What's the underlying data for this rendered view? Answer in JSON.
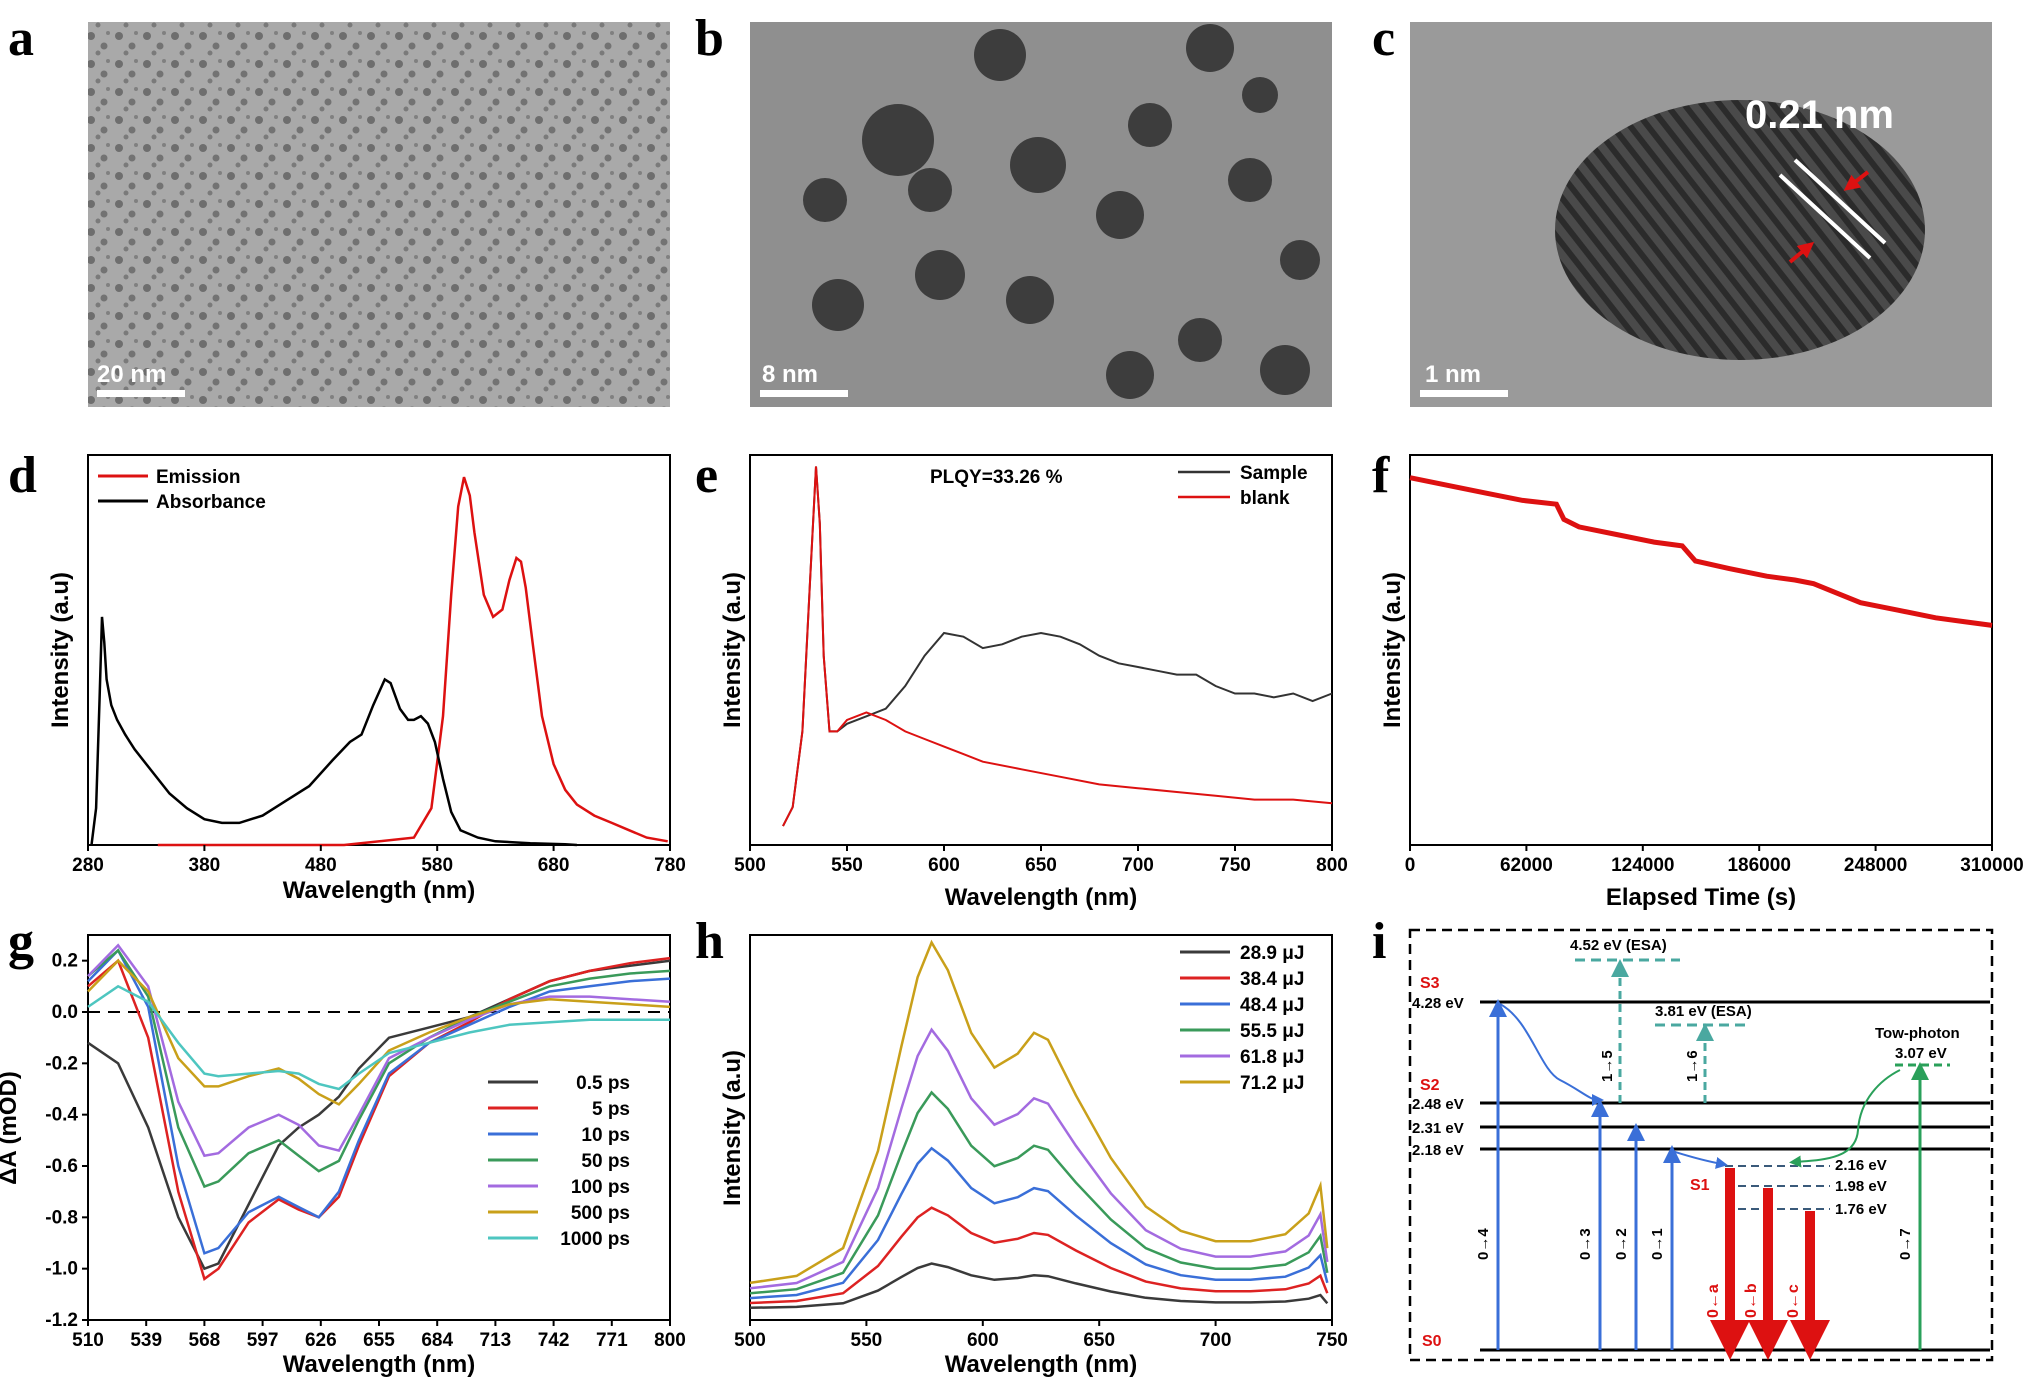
{
  "panels": {
    "a": {
      "label": "a",
      "scale_bar": "20 nm"
    },
    "b": {
      "label": "b",
      "scale_bar": "8 nm"
    },
    "c": {
      "label": "c",
      "scale_bar": "1 nm",
      "spacing": "0.21 nm"
    },
    "d": {
      "label": "d"
    },
    "e": {
      "label": "e",
      "annotation": "PLQY=33.26 %"
    },
    "f": {
      "label": "f"
    },
    "g": {
      "label": "g"
    },
    "h": {
      "label": "h"
    },
    "i": {
      "label": "i"
    }
  },
  "colors": {
    "red": "#dd1111",
    "black": "#222222",
    "blue": "#3a6fd8",
    "green": "#2aa05a",
    "teal": "#3aa6a0",
    "gold": "#c9a01a",
    "violet": "#a36be0",
    "dashteal": "#4aa8a0"
  },
  "chart_data": [
    {
      "type": "line",
      "panel": "d",
      "xlabel": "Wavelength (nm)",
      "ylabel": "Intensity (a.u)",
      "xlim": [
        280,
        780
      ],
      "xticks": [
        "280",
        "380",
        "480",
        "580",
        "680",
        "780"
      ],
      "series": [
        {
          "name": "Emission",
          "color": "#dd1111",
          "x": [
            340,
            500,
            560,
            575,
            585,
            592,
            598,
            603,
            608,
            612,
            620,
            628,
            636,
            642,
            648,
            652,
            656,
            662,
            670,
            680,
            690,
            700,
            715,
            730,
            745,
            760,
            778
          ],
          "y": [
            0.0,
            0.0,
            0.02,
            0.1,
            0.35,
            0.68,
            0.92,
            1.0,
            0.95,
            0.85,
            0.68,
            0.62,
            0.64,
            0.72,
            0.78,
            0.77,
            0.7,
            0.55,
            0.35,
            0.22,
            0.15,
            0.11,
            0.08,
            0.06,
            0.04,
            0.02,
            0.01
          ]
        },
        {
          "name": "Absorbance",
          "color": "#000000",
          "x": [
            283,
            287,
            290,
            292,
            294,
            296,
            300,
            305,
            312,
            320,
            335,
            350,
            365,
            380,
            395,
            410,
            430,
            450,
            470,
            490,
            505,
            515,
            525,
            535,
            540,
            548,
            555,
            560,
            566,
            572,
            578,
            585,
            592,
            600,
            615,
            630,
            660,
            690,
            700
          ],
          "y": [
            0.0,
            0.1,
            0.4,
            0.62,
            0.55,
            0.45,
            0.38,
            0.34,
            0.3,
            0.26,
            0.2,
            0.14,
            0.1,
            0.07,
            0.06,
            0.06,
            0.08,
            0.12,
            0.16,
            0.23,
            0.28,
            0.3,
            0.38,
            0.45,
            0.44,
            0.37,
            0.34,
            0.34,
            0.35,
            0.33,
            0.28,
            0.18,
            0.09,
            0.04,
            0.02,
            0.01,
            0.005,
            0.002,
            0.0
          ]
        }
      ]
    },
    {
      "type": "line",
      "panel": "e",
      "xlabel": "Wavelength (nm)",
      "ylabel": "Intensity (a.u)",
      "xlim": [
        500,
        800
      ],
      "xticks": [
        "500",
        "550",
        "600",
        "650",
        "700",
        "750",
        "800"
      ],
      "series": [
        {
          "name": "Sample",
          "color": "#333333",
          "x": [
            517,
            522,
            527,
            531,
            534,
            536,
            538,
            541,
            545,
            550,
            560,
            570,
            580,
            590,
            600,
            610,
            620,
            630,
            640,
            650,
            660,
            670,
            680,
            690,
            700,
            710,
            720,
            730,
            740,
            750,
            760,
            770,
            780,
            790,
            800
          ],
          "y": [
            0.05,
            0.1,
            0.3,
            0.7,
            1.0,
            0.85,
            0.5,
            0.3,
            0.3,
            0.32,
            0.34,
            0.36,
            0.42,
            0.5,
            0.56,
            0.55,
            0.52,
            0.53,
            0.55,
            0.56,
            0.55,
            0.53,
            0.5,
            0.48,
            0.47,
            0.46,
            0.45,
            0.45,
            0.42,
            0.4,
            0.4,
            0.39,
            0.4,
            0.38,
            0.4
          ]
        },
        {
          "name": "blank",
          "color": "#dd1111",
          "x": [
            517,
            522,
            527,
            531,
            534,
            536,
            538,
            541,
            545,
            550,
            560,
            570,
            580,
            590,
            600,
            610,
            620,
            640,
            660,
            680,
            700,
            720,
            740,
            760,
            780,
            800
          ],
          "y": [
            0.05,
            0.1,
            0.3,
            0.7,
            1.0,
            0.85,
            0.5,
            0.3,
            0.3,
            0.33,
            0.35,
            0.33,
            0.3,
            0.28,
            0.26,
            0.24,
            0.22,
            0.2,
            0.18,
            0.16,
            0.15,
            0.14,
            0.13,
            0.12,
            0.12,
            0.11
          ]
        }
      ]
    },
    {
      "type": "line",
      "panel": "f",
      "xlabel": "Elapsed Time (s)",
      "ylabel": "Intensity (a.u)",
      "xlim": [
        0,
        310000
      ],
      "xticks": [
        "0",
        "62000",
        "124000",
        "186000",
        "248000",
        "310000"
      ],
      "series": [
        {
          "name": "",
          "color": "#dd1111",
          "x": [
            0,
            20000,
            40000,
            60000,
            78000,
            82000,
            90000,
            110000,
            130000,
            145000,
            152000,
            170000,
            190000,
            205000,
            215000,
            225000,
            240000,
            260000,
            280000,
            295000,
            310000
          ],
          "y": [
            0.97,
            0.95,
            0.93,
            0.91,
            0.9,
            0.86,
            0.84,
            0.82,
            0.8,
            0.79,
            0.75,
            0.73,
            0.71,
            0.7,
            0.69,
            0.67,
            0.64,
            0.62,
            0.6,
            0.59,
            0.58
          ]
        }
      ]
    },
    {
      "type": "line",
      "panel": "g",
      "xlabel": "Wavelength (nm)",
      "ylabel": "ΔA (mOD)",
      "xlim": [
        510,
        800
      ],
      "ylim": [
        -1.2,
        0.3
      ],
      "xticks": [
        "510",
        "539",
        "568",
        "597",
        "626",
        "655",
        "684",
        "713",
        "742",
        "771",
        "800"
      ],
      "yticks": [
        "0.2",
        "0.0",
        "-0.2",
        "-0.4",
        "-0.6",
        "-0.8",
        "-1.0",
        "-1.2"
      ],
      "x": [
        510,
        525,
        540,
        555,
        568,
        575,
        590,
        605,
        615,
        625,
        635,
        645,
        660,
        680,
        700,
        720,
        740,
        760,
        780,
        800
      ],
      "series": [
        {
          "name": "0.5 ps",
          "color": "#3a3a3a",
          "y": [
            -0.12,
            -0.2,
            -0.45,
            -0.8,
            -1.0,
            -0.98,
            -0.75,
            -0.52,
            -0.45,
            -0.4,
            -0.33,
            -0.22,
            -0.1,
            -0.06,
            -0.02,
            0.05,
            0.12,
            0.16,
            0.18,
            0.2
          ]
        },
        {
          "name": "5 ps",
          "color": "#dd2222",
          "y": [
            0.1,
            0.2,
            -0.1,
            -0.7,
            -1.04,
            -1.0,
            -0.82,
            -0.73,
            -0.77,
            -0.8,
            -0.72,
            -0.52,
            -0.25,
            -0.12,
            -0.04,
            0.05,
            0.12,
            0.16,
            0.19,
            0.21
          ]
        },
        {
          "name": "10 ps",
          "color": "#3a6fd8",
          "y": [
            0.12,
            0.24,
            0.02,
            -0.6,
            -0.94,
            -0.92,
            -0.78,
            -0.72,
            -0.76,
            -0.8,
            -0.7,
            -0.5,
            -0.24,
            -0.12,
            -0.05,
            0.02,
            0.08,
            0.1,
            0.12,
            0.13
          ]
        },
        {
          "name": "50 ps",
          "color": "#3a9a5a",
          "y": [
            0.14,
            0.24,
            0.06,
            -0.45,
            -0.68,
            -0.66,
            -0.55,
            -0.5,
            -0.56,
            -0.62,
            -0.58,
            -0.42,
            -0.2,
            -0.1,
            -0.02,
            0.04,
            0.1,
            0.13,
            0.15,
            0.16
          ]
        },
        {
          "name": "100 ps",
          "color": "#a36be0",
          "y": [
            0.14,
            0.26,
            0.1,
            -0.35,
            -0.56,
            -0.55,
            -0.45,
            -0.4,
            -0.44,
            -0.52,
            -0.54,
            -0.4,
            -0.18,
            -0.1,
            -0.03,
            0.03,
            0.06,
            0.06,
            0.05,
            0.04
          ]
        },
        {
          "name": "500 ps",
          "color": "#c9a01a",
          "y": [
            0.08,
            0.2,
            0.08,
            -0.18,
            -0.29,
            -0.29,
            -0.25,
            -0.22,
            -0.26,
            -0.32,
            -0.36,
            -0.28,
            -0.15,
            -0.08,
            -0.02,
            0.03,
            0.05,
            0.04,
            0.03,
            0.02
          ]
        },
        {
          "name": "1000 ps",
          "color": "#4ec6c0",
          "y": [
            0.02,
            0.1,
            0.04,
            -0.12,
            -0.24,
            -0.25,
            -0.24,
            -0.23,
            -0.24,
            -0.28,
            -0.3,
            -0.24,
            -0.16,
            -0.12,
            -0.08,
            -0.05,
            -0.04,
            -0.03,
            -0.03,
            -0.03
          ]
        }
      ]
    },
    {
      "type": "line",
      "panel": "h",
      "xlabel": "Wavelength (nm)",
      "ylabel": "Intensity (a.u)",
      "xlim": [
        500,
        750
      ],
      "xticks": [
        "500",
        "550",
        "600",
        "650",
        "700",
        "750"
      ],
      "x": [
        500,
        520,
        540,
        555,
        565,
        572,
        578,
        585,
        595,
        605,
        615,
        622,
        628,
        640,
        655,
        670,
        685,
        700,
        715,
        730,
        740,
        745,
        748
      ],
      "series": [
        {
          "name": "28.9 μJ",
          "color": "#3a3a3a",
          "scale": 0.13
        },
        {
          "name": "38.4 μJ",
          "color": "#dd2222",
          "scale": 0.28
        },
        {
          "name": "48.4 μJ",
          "color": "#3a6fd8",
          "scale": 0.44
        },
        {
          "name": "55.5 μJ",
          "color": "#3a9a5a",
          "scale": 0.59
        },
        {
          "name": "61.8 μJ",
          "color": "#a36be0",
          "scale": 0.76
        },
        {
          "name": "71.2 μJ",
          "color": "#c9a01a",
          "scale": 1.0
        }
      ],
      "shape": [
        0.02,
        0.04,
        0.12,
        0.4,
        0.7,
        0.9,
        1.0,
        0.92,
        0.74,
        0.64,
        0.68,
        0.74,
        0.72,
        0.56,
        0.38,
        0.24,
        0.17,
        0.14,
        0.14,
        0.16,
        0.22,
        0.3,
        0.12
      ]
    }
  ],
  "legends": {
    "d": [
      "Emission",
      "Absorbance"
    ],
    "e": [
      "Sample",
      "blank"
    ],
    "g": [
      "0.5 ps",
      "5 ps",
      "10 ps",
      "50 ps",
      "100 ps",
      "500 ps",
      "1000 ps"
    ],
    "h": [
      "28.9 μJ",
      "38.4 μJ",
      "48.4 μJ",
      "55.5 μJ",
      "61.8 μJ",
      "71.2 μJ"
    ]
  },
  "diagram_i": {
    "states": [
      "S3",
      "S2",
      "S1",
      "S0"
    ],
    "levels": [
      "4.28 eV",
      "2.48 eV",
      "2.31 eV",
      "2.18 eV",
      "2.16 eV",
      "1.98 eV",
      "1.76 eV",
      "3.07 eV",
      "4.52 eV (ESA)",
      "3.81 eV (ESA)"
    ],
    "transitions": [
      "0→4",
      "0→3",
      "0→2",
      "0→1",
      "0←a",
      "0←b",
      "0←c",
      "0→7",
      "1→5",
      "1→6"
    ],
    "tow_photon": "Tow-photon"
  }
}
